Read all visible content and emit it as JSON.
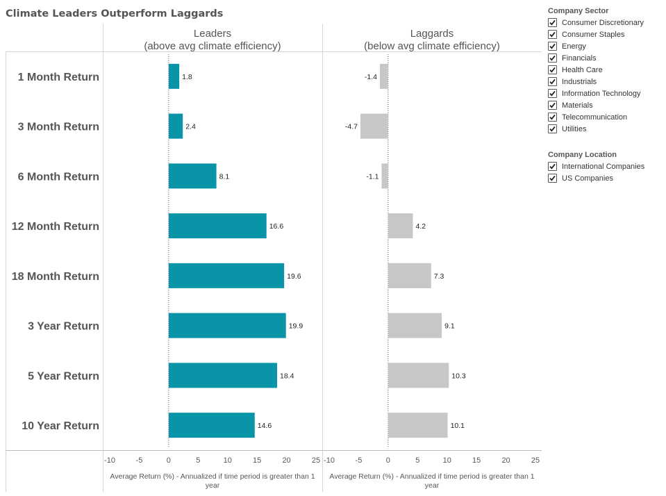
{
  "chart_data": {
    "type": "bar",
    "title": "Climate Leaders Outperform Laggards",
    "categories": [
      "1 Month Return",
      "3 Month Return",
      "6 Month Return",
      "12 Month Return",
      "18 Month Return",
      "3 Year Return",
      "5 Year Return",
      "10 Year Return"
    ],
    "panels": [
      {
        "title_line1": "Leaders",
        "title_line2": "(above avg climate efficiency)",
        "color": "#0a94a8",
        "values": [
          1.8,
          2.4,
          8.1,
          16.6,
          19.6,
          19.9,
          18.4,
          14.6
        ],
        "labels": [
          "1.8",
          "2.4",
          "8.1",
          "16.6",
          "19.6",
          "19.9",
          "18.4",
          "14.6"
        ]
      },
      {
        "title_line1": "Laggards",
        "title_line2": "(below avg climate efficiency)",
        "color": "#c7c7c7",
        "values": [
          -1.4,
          -4.7,
          -1.1,
          4.2,
          7.3,
          9.1,
          10.3,
          10.1
        ],
        "labels": [
          "-1.4",
          "-4.7",
          "-1.1",
          "4.2",
          "7.3",
          "9.1",
          "10.3",
          "10.1"
        ]
      }
    ],
    "xlim": [
      -10,
      25
    ],
    "xticks": [
      "-10",
      "-5",
      "0",
      "5",
      "10",
      "15",
      "20",
      "25"
    ],
    "xlabel_line1": "Average Return (%) - Annualized if time period is greater than 1",
    "xlabel_line2": "year"
  },
  "filters": [
    {
      "title": "Company Sector",
      "items": [
        "Consumer Discretionary",
        "Consumer Staples",
        "Energy",
        "Financials",
        "Health Care",
        "Industrials",
        "Information Technology",
        "Materials",
        "Telecommunication",
        "Utilities"
      ]
    },
    {
      "title": "Company Location",
      "items": [
        "International Companies",
        "US Companies"
      ]
    }
  ],
  "colors": {
    "leaders": "#0a94a8",
    "laggards": "#c7c7c7",
    "text": "#555555",
    "grid": "#d9d9d9"
  }
}
